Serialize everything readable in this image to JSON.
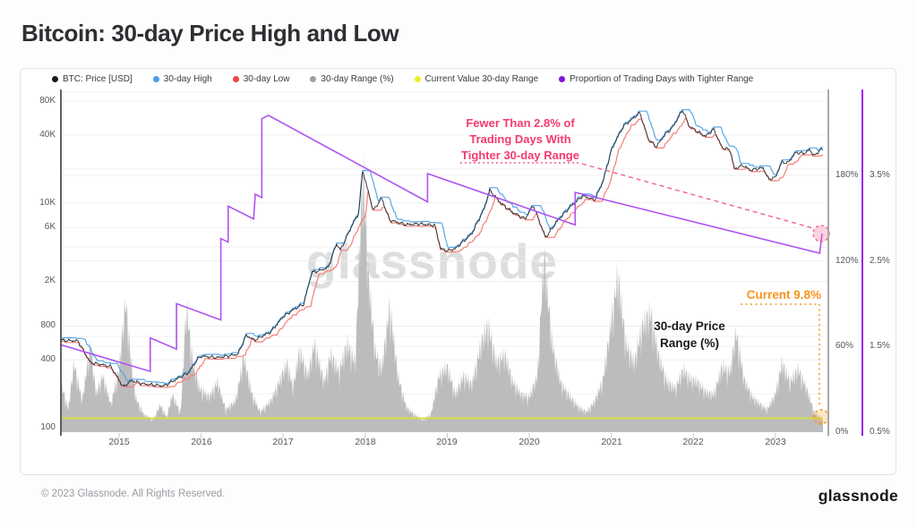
{
  "page": {
    "title": "Bitcoin: 30-day Price High and Low",
    "watermark": "glassnode",
    "footer_copyright": "© 2023 Glassnode. All Rights Reserved.",
    "footer_logo": "glassnode"
  },
  "legend": {
    "items": [
      {
        "label": "BTC: Price [USD]",
        "color": "#1a1a1c"
      },
      {
        "label": "30-day High",
        "color": "#4a9fe8"
      },
      {
        "label": "30-day Low",
        "color": "#f0453c"
      },
      {
        "label": "30-day Range (%)",
        "color": "#9ca0a6"
      },
      {
        "label": "Current Value 30-day Range",
        "color": "#ecf021"
      },
      {
        "label": "Proportion of Trading Days with Tighter Range",
        "color": "#8015d8"
      }
    ]
  },
  "annotations": {
    "tighter_range": {
      "lines": [
        "Fewer Than 2.8% of",
        "Trading Days With",
        "Tighter 30-day Range"
      ],
      "value_pct": 2.8,
      "color": "#f43a6e"
    },
    "current": {
      "text": "Current 9.8%",
      "value_pct": 9.8,
      "color": "#f7941e"
    },
    "range_label": {
      "lines": [
        "30-day Price",
        "Range (%)"
      ]
    }
  },
  "chart_data": {
    "type": "composite",
    "title": "Bitcoin: 30-day Price High and Low",
    "x_range_years": [
      2014.29,
      2023.58
    ],
    "grid": "horizontal-only",
    "price_axis": {
      "side": "left",
      "scale": "log",
      "unit": "USD",
      "ticks": [
        {
          "label": "80K",
          "value": 80000
        },
        {
          "label": "40K",
          "value": 40000
        },
        {
          "label": "10K",
          "value": 10000
        },
        {
          "label": "6K",
          "value": 6000
        },
        {
          "label": "2K",
          "value": 2000
        },
        {
          "label": "800",
          "value": 800
        },
        {
          "label": "400",
          "value": 400
        },
        {
          "label": "100",
          "value": 100
        }
      ]
    },
    "range_axis": {
      "side": "right-inner",
      "unit": "%",
      "color": "#a8a8a8",
      "ticks": [
        {
          "label": "180%",
          "value": 180
        },
        {
          "label": "120%",
          "value": 120
        },
        {
          "label": "60%",
          "value": 60
        },
        {
          "label": "0%",
          "value": 0
        }
      ]
    },
    "proportion_axis": {
      "side": "right-outer",
      "unit": "%",
      "color": "#9b1fe8",
      "ticks": [
        {
          "label": "3.5%",
          "value": 3.5
        },
        {
          "label": "2.5%",
          "value": 2.5
        },
        {
          "label": "1.5%",
          "value": 1.5
        },
        {
          "label": "0.5%",
          "value": 0.5
        }
      ]
    },
    "x_axis": {
      "ticks": [
        {
          "label": "2015",
          "value": 2015
        },
        {
          "label": "2016",
          "value": 2016
        },
        {
          "label": "2017",
          "value": 2017
        },
        {
          "label": "2018",
          "value": 2018
        },
        {
          "label": "2019",
          "value": 2019
        },
        {
          "label": "2020",
          "value": 2020
        },
        {
          "label": "2021",
          "value": 2021
        },
        {
          "label": "2022",
          "value": 2022
        },
        {
          "label": "2023",
          "value": 2023
        }
      ]
    },
    "series": [
      {
        "id": "btc_price",
        "name": "BTC: Price [USD]",
        "type": "line",
        "color": "#2b2b2e",
        "axis": "price",
        "points": [
          [
            2014.29,
            600
          ],
          [
            2014.5,
            590
          ],
          [
            2014.65,
            380
          ],
          [
            2014.9,
            350
          ],
          [
            2015.05,
            230
          ],
          [
            2015.15,
            262
          ],
          [
            2015.3,
            245
          ],
          [
            2015.55,
            235
          ],
          [
            2015.7,
            270
          ],
          [
            2015.85,
            310
          ],
          [
            2015.95,
            400
          ],
          [
            2016.0,
            432
          ],
          [
            2016.2,
            420
          ],
          [
            2016.45,
            450
          ],
          [
            2016.55,
            660
          ],
          [
            2016.65,
            600
          ],
          [
            2016.85,
            710
          ],
          [
            2017.0,
            970
          ],
          [
            2017.15,
            1150
          ],
          [
            2017.25,
            1250
          ],
          [
            2017.35,
            2400
          ],
          [
            2017.45,
            2500
          ],
          [
            2017.55,
            2650
          ],
          [
            2017.65,
            4300
          ],
          [
            2017.7,
            3800
          ],
          [
            2017.85,
            6500
          ],
          [
            2017.92,
            8000
          ],
          [
            2017.97,
            19400
          ],
          [
            2018.02,
            14000
          ],
          [
            2018.1,
            8500
          ],
          [
            2018.2,
            11000
          ],
          [
            2018.3,
            7000
          ],
          [
            2018.5,
            6400
          ],
          [
            2018.65,
            6500
          ],
          [
            2018.85,
            6300
          ],
          [
            2018.92,
            3900
          ],
          [
            2019.0,
            3750
          ],
          [
            2019.1,
            3900
          ],
          [
            2019.3,
            5300
          ],
          [
            2019.45,
            8800
          ],
          [
            2019.52,
            12900
          ],
          [
            2019.65,
            10000
          ],
          [
            2019.8,
            8200
          ],
          [
            2019.95,
            7200
          ],
          [
            2020.05,
            9500
          ],
          [
            2020.2,
            4900
          ],
          [
            2020.35,
            7000
          ],
          [
            2020.5,
            9200
          ],
          [
            2020.65,
            11500
          ],
          [
            2020.8,
            10600
          ],
          [
            2020.9,
            15500
          ],
          [
            2021.0,
            29000
          ],
          [
            2021.05,
            35000
          ],
          [
            2021.15,
            48000
          ],
          [
            2021.3,
            59000
          ],
          [
            2021.35,
            63000
          ],
          [
            2021.45,
            37000
          ],
          [
            2021.55,
            31500
          ],
          [
            2021.65,
            40000
          ],
          [
            2021.75,
            47000
          ],
          [
            2021.87,
            67000
          ],
          [
            2021.95,
            48000
          ],
          [
            2022.05,
            43000
          ],
          [
            2022.15,
            39000
          ],
          [
            2022.25,
            45000
          ],
          [
            2022.35,
            31000
          ],
          [
            2022.45,
            29500
          ],
          [
            2022.5,
            20000
          ],
          [
            2022.6,
            21500
          ],
          [
            2022.7,
            19500
          ],
          [
            2022.85,
            20500
          ],
          [
            2022.92,
            16200
          ],
          [
            2023.0,
            16800
          ],
          [
            2023.08,
            23000
          ],
          [
            2023.15,
            22500
          ],
          [
            2023.25,
            28000
          ],
          [
            2023.35,
            27500
          ],
          [
            2023.42,
            29500
          ],
          [
            2023.48,
            26000
          ],
          [
            2023.55,
            30000
          ],
          [
            2023.58,
            29500
          ]
        ]
      },
      {
        "id": "high_30d",
        "name": "30-day High",
        "type": "line",
        "color": "#5aa7e8",
        "axis": "price",
        "derived": "rolling 30-day maximum of btc_price"
      },
      {
        "id": "low_30d",
        "name": "30-day Low",
        "type": "line",
        "color": "#f57f77",
        "axis": "price",
        "derived": "rolling 30-day minimum of btc_price"
      },
      {
        "id": "range_pct",
        "name": "30-day Range (%)",
        "type": "area",
        "color": "#bcbcbe",
        "axis": "range",
        "points": [
          [
            2014.29,
            40
          ],
          [
            2014.38,
            18
          ],
          [
            2014.45,
            55
          ],
          [
            2014.55,
            25
          ],
          [
            2014.65,
            70
          ],
          [
            2014.72,
            30
          ],
          [
            2014.8,
            45
          ],
          [
            2014.9,
            22
          ],
          [
            2015.0,
            50
          ],
          [
            2015.08,
            105
          ],
          [
            2015.14,
            60
          ],
          [
            2015.2,
            28
          ],
          [
            2015.3,
            14
          ],
          [
            2015.42,
            10
          ],
          [
            2015.5,
            22
          ],
          [
            2015.58,
            12
          ],
          [
            2015.65,
            30
          ],
          [
            2015.75,
            15
          ],
          [
            2015.82,
            100
          ],
          [
            2015.9,
            55
          ],
          [
            2015.98,
            35
          ],
          [
            2016.1,
            28
          ],
          [
            2016.2,
            40
          ],
          [
            2016.3,
            18
          ],
          [
            2016.42,
            25
          ],
          [
            2016.52,
            60
          ],
          [
            2016.62,
            30
          ],
          [
            2016.72,
            16
          ],
          [
            2016.85,
            25
          ],
          [
            2016.95,
            40
          ],
          [
            2017.05,
            55
          ],
          [
            2017.12,
            35
          ],
          [
            2017.2,
            65
          ],
          [
            2017.3,
            45
          ],
          [
            2017.38,
            70
          ],
          [
            2017.5,
            40
          ],
          [
            2017.58,
            62
          ],
          [
            2017.68,
            48
          ],
          [
            2017.78,
            70
          ],
          [
            2017.88,
            55
          ],
          [
            2017.97,
            210
          ],
          [
            2018.05,
            115
          ],
          [
            2018.12,
            65
          ],
          [
            2018.2,
            50
          ],
          [
            2018.3,
            100
          ],
          [
            2018.4,
            45
          ],
          [
            2018.5,
            20
          ],
          [
            2018.6,
            14
          ],
          [
            2018.7,
            10
          ],
          [
            2018.8,
            14
          ],
          [
            2018.9,
            45
          ],
          [
            2019.0,
            52
          ],
          [
            2019.1,
            30
          ],
          [
            2019.2,
            45
          ],
          [
            2019.3,
            38
          ],
          [
            2019.42,
            72
          ],
          [
            2019.5,
            85
          ],
          [
            2019.6,
            55
          ],
          [
            2019.7,
            62
          ],
          [
            2019.8,
            40
          ],
          [
            2019.9,
            30
          ],
          [
            2020.0,
            28
          ],
          [
            2020.1,
            45
          ],
          [
            2020.18,
            142
          ],
          [
            2020.28,
            70
          ],
          [
            2020.38,
            40
          ],
          [
            2020.5,
            28
          ],
          [
            2020.6,
            20
          ],
          [
            2020.7,
            16
          ],
          [
            2020.8,
            25
          ],
          [
            2020.9,
            42
          ],
          [
            2021.0,
            88
          ],
          [
            2021.08,
            125
          ],
          [
            2021.18,
            70
          ],
          [
            2021.28,
            55
          ],
          [
            2021.38,
            85
          ],
          [
            2021.48,
            95
          ],
          [
            2021.58,
            60
          ],
          [
            2021.68,
            40
          ],
          [
            2021.78,
            35
          ],
          [
            2021.88,
            50
          ],
          [
            2021.96,
            42
          ],
          [
            2022.05,
            40
          ],
          [
            2022.15,
            32
          ],
          [
            2022.25,
            30
          ],
          [
            2022.35,
            52
          ],
          [
            2022.45,
            48
          ],
          [
            2022.52,
            80
          ],
          [
            2022.62,
            42
          ],
          [
            2022.72,
            28
          ],
          [
            2022.82,
            22
          ],
          [
            2022.9,
            18
          ],
          [
            2023.0,
            30
          ],
          [
            2023.08,
            55
          ],
          [
            2023.18,
            40
          ],
          [
            2023.28,
            50
          ],
          [
            2023.38,
            35
          ],
          [
            2023.48,
            15
          ],
          [
            2023.55,
            12
          ],
          [
            2023.58,
            9.8
          ]
        ]
      },
      {
        "id": "current_range",
        "name": "Current Value 30-day Range",
        "type": "hline",
        "color": "#dde22b",
        "axis": "range",
        "value": 9.8
      },
      {
        "id": "proportion_tighter",
        "name": "Proportion of Trading Days with Tighter Range",
        "type": "line",
        "color": "#b052f0",
        "axis": "proportion",
        "points": [
          [
            2014.29,
            1.52
          ],
          [
            2015.38,
            1.21
          ],
          [
            2015.38,
            1.6
          ],
          [
            2015.7,
            1.47
          ],
          [
            2015.7,
            2.0
          ],
          [
            2016.24,
            1.81
          ],
          [
            2016.24,
            2.76
          ],
          [
            2016.33,
            2.72
          ],
          [
            2016.33,
            3.14
          ],
          [
            2016.64,
            2.99
          ],
          [
            2016.66,
            3.28
          ],
          [
            2016.74,
            3.24
          ],
          [
            2016.74,
            4.16
          ],
          [
            2016.82,
            4.2
          ],
          [
            2018.76,
            3.19
          ],
          [
            2018.76,
            3.52
          ],
          [
            2020.56,
            2.92
          ],
          [
            2020.56,
            3.3
          ],
          [
            2023.54,
            2.59
          ],
          [
            2023.57,
            2.82
          ]
        ]
      }
    ]
  }
}
